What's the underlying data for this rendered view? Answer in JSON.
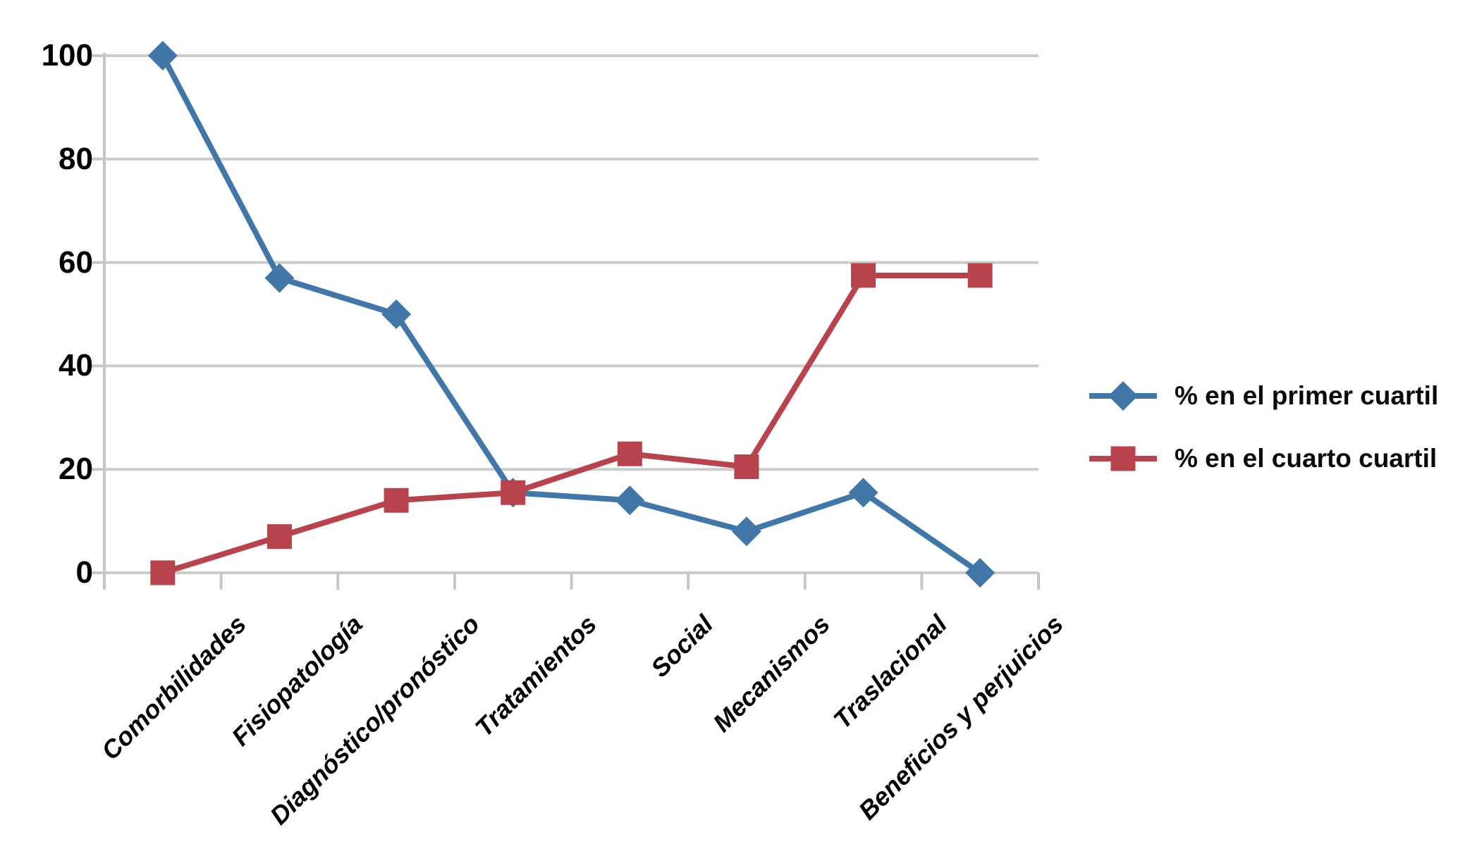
{
  "chart_data": {
    "type": "line",
    "title": "",
    "categories": [
      "Comorbilidades",
      "Fisiopatología",
      "Diagnóstico/pronóstico",
      "Tratamientos",
      "Social",
      "Mecanismos",
      "Traslacional",
      "Beneficios y perjuicios"
    ],
    "series": [
      {
        "name": "% en el primer cuartil",
        "marker": "diamond",
        "color": "#4076A8",
        "values": [
          100,
          57,
          50,
          15.5,
          14,
          8,
          15.5,
          0
        ]
      },
      {
        "name": "% en el cuarto cuartil",
        "marker": "square",
        "color": "#B8434C",
        "values": [
          0,
          7,
          14,
          15.5,
          23,
          20.5,
          57.5,
          57.5
        ]
      }
    ],
    "ylim": [
      0,
      100
    ],
    "yticks": [
      0,
      20,
      40,
      60,
      80,
      100
    ],
    "grid": "horizontal",
    "grid_color": "#CBCBCB",
    "axis_color": "#C6C6C6",
    "text_color": "#000000",
    "legend_position": "right"
  }
}
